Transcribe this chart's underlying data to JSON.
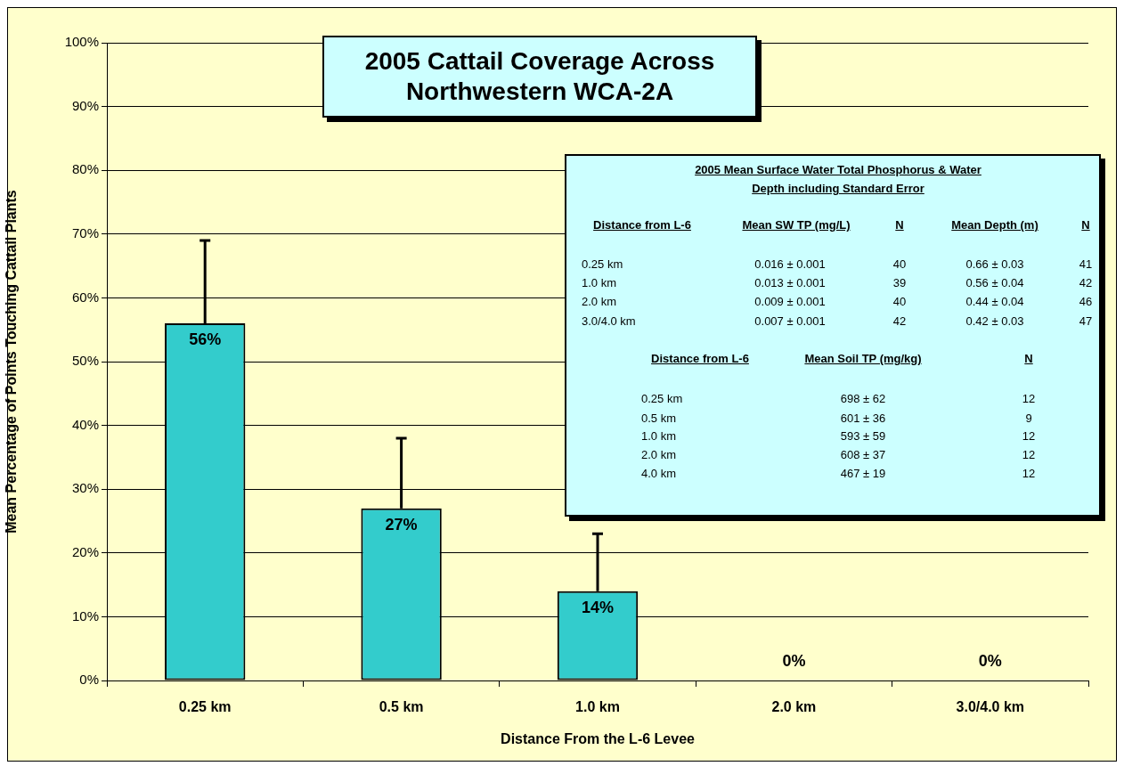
{
  "chart_data": {
    "type": "bar",
    "title": "2005 Cattail Coverage Across Northwestern WCA-2A",
    "xlabel": "Distance From the L-6 Levee",
    "ylabel": "Mean Percentage of Points Touching Cattail Plants",
    "categories": [
      "0.25 km",
      "0.5 km",
      "1.0 km",
      "2.0 km",
      "3.0/4.0 km"
    ],
    "values": [
      56,
      27,
      14,
      0,
      0
    ],
    "color": "#33cccc",
    "errors": [
      [
        56,
        69
      ],
      [
        27,
        38
      ],
      [
        14,
        23
      ],
      null,
      null
    ],
    "value_labels": [
      "56%",
      "27%",
      "14%",
      "0%",
      "0%"
    ],
    "ylim": [
      0,
      100
    ],
    "yticks": [
      {
        "value": 0,
        "label": "0%"
      },
      {
        "value": 10,
        "label": "10%"
      },
      {
        "value": 20,
        "label": "20%"
      },
      {
        "value": 30,
        "label": "30%"
      },
      {
        "value": 40,
        "label": "40%"
      },
      {
        "value": 50,
        "label": "50%"
      },
      {
        "value": 60,
        "label": "60%"
      },
      {
        "value": 70,
        "label": "70%"
      },
      {
        "value": 80,
        "label": "80%"
      },
      {
        "value": 90,
        "label": "90%"
      },
      {
        "value": 100,
        "label": "100%"
      }
    ],
    "grid": "y",
    "legend": false,
    "annotations": [
      "2005 Mean Surface Water Total Phosphorus & Water Depth including Standard Error",
      "Distance from L-6",
      "Mean SW TP (mg/L)",
      "N",
      "Mean Depth (m)",
      "N",
      "0.25 km",
      "0.016 ± 0.001",
      "40",
      "0.66 ± 0.03",
      "41",
      "1.0 km",
      "0.013 ± 0.001",
      "39",
      "0.56 ± 0.04",
      "42",
      "2.0 km",
      "0.009 ± 0.001",
      "40",
      "0.44 ± 0.04",
      "46",
      "3.0/4.0 km",
      "0.007 ± 0.001",
      "42",
      "0.42 ± 0.03",
      "47",
      "Distance from L-6",
      "Mean Soil TP (mg/kg)",
      "N",
      "0.25 km",
      "698 ± 62",
      "12",
      "0.5 km",
      "601 ± 36",
      "9",
      "1.0 km",
      "593 ± 59",
      "12",
      "2.0 km",
      "608 ± 37",
      "12",
      "4.0 km",
      "467 ± 19",
      "12"
    ]
  }
}
